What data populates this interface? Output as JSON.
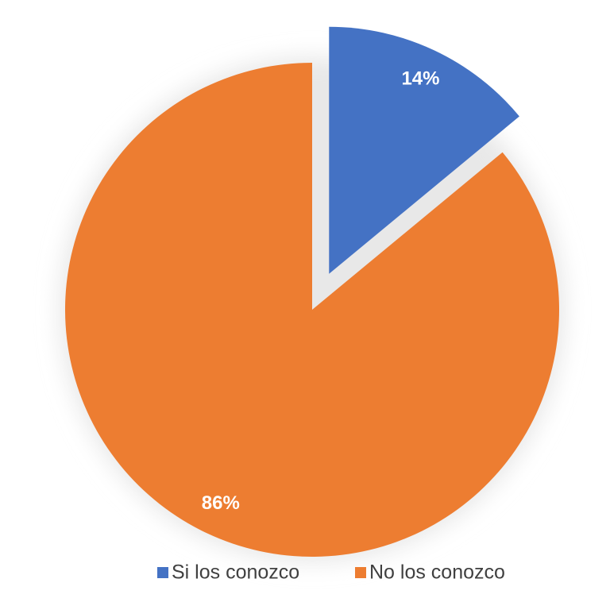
{
  "chart_data": {
    "type": "pie",
    "categories": [
      "Si los conozco",
      "No los conozco"
    ],
    "values": [
      14,
      86
    ],
    "value_labels": [
      "14%",
      "86%"
    ],
    "colors": [
      "#4472c4",
      "#ed7d31"
    ],
    "exploded": [
      true,
      false
    ],
    "legend": "bottom"
  }
}
